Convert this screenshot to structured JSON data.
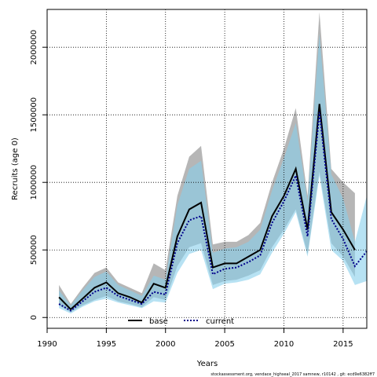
{
  "chart_data": {
    "type": "line",
    "title": "",
    "xlabel": "Years",
    "ylabel": "Recruits (age 0)",
    "xlim": [
      1990,
      2017
    ],
    "ylim": [
      -80000,
      2280000
    ],
    "x_ticks": [
      1990,
      1995,
      2000,
      2005,
      2010,
      2015
    ],
    "y_ticks": [
      0,
      500000,
      1000000,
      1500000,
      2000000
    ],
    "grid": true,
    "legend_position": "bottom-center",
    "x": [
      1991,
      1992,
      1993,
      1994,
      1995,
      1996,
      1997,
      1998,
      1999,
      2000,
      2001,
      2002,
      2003,
      2004,
      2005,
      2006,
      2007,
      2008,
      2009,
      2010,
      2011,
      2012,
      2013,
      2014,
      2015,
      2016,
      2017
    ],
    "series": [
      {
        "name": "base",
        "style": "solid",
        "line_color": "#000000",
        "band_color": "#a9a9a9",
        "values": [
          150000,
          60000,
          140000,
          220000,
          260000,
          180000,
          150000,
          110000,
          250000,
          220000,
          600000,
          800000,
          850000,
          370000,
          400000,
          400000,
          450000,
          500000,
          750000,
          900000,
          1100000,
          650000,
          1580000,
          780000,
          650000,
          500000,
          null
        ],
        "lower": [
          90000,
          40000,
          90000,
          130000,
          160000,
          120000,
          100000,
          75000,
          150000,
          130000,
          380000,
          520000,
          550000,
          240000,
          270000,
          280000,
          310000,
          350000,
          520000,
          650000,
          800000,
          470000,
          1080000,
          550000,
          450000,
          300000,
          null
        ],
        "upper": [
          240000,
          100000,
          220000,
          330000,
          370000,
          260000,
          220000,
          180000,
          400000,
          350000,
          900000,
          1190000,
          1270000,
          540000,
          560000,
          560000,
          610000,
          700000,
          1000000,
          1250000,
          1550000,
          900000,
          2260000,
          1100000,
          1000000,
          920000,
          null
        ]
      },
      {
        "name": "current",
        "style": "dotted",
        "line_color": "#00008b",
        "band_color": "#87ceeb",
        "values": [
          100000,
          50000,
          120000,
          190000,
          220000,
          160000,
          130000,
          100000,
          190000,
          170000,
          550000,
          720000,
          750000,
          320000,
          360000,
          370000,
          410000,
          460000,
          700000,
          860000,
          1050000,
          600000,
          1520000,
          730000,
          580000,
          380000,
          490000
        ],
        "lower": [
          70000,
          30000,
          80000,
          120000,
          140000,
          110000,
          90000,
          70000,
          120000,
          110000,
          330000,
          470000,
          500000,
          210000,
          250000,
          260000,
          280000,
          320000,
          480000,
          620000,
          780000,
          450000,
          1050000,
          500000,
          420000,
          240000,
          270000
        ],
        "upper": [
          200000,
          90000,
          200000,
          300000,
          340000,
          240000,
          200000,
          160000,
          310000,
          280000,
          830000,
          1100000,
          1160000,
          480000,
          510000,
          520000,
          560000,
          650000,
          940000,
          1180000,
          1440000,
          860000,
          2100000,
          1060000,
          880000,
          560000,
          900000
        ]
      }
    ],
    "footer": "stockassessment.org,  vendace_highseal_2017  samnew,  r10142  ,  git: ecd9e6382ff7"
  }
}
